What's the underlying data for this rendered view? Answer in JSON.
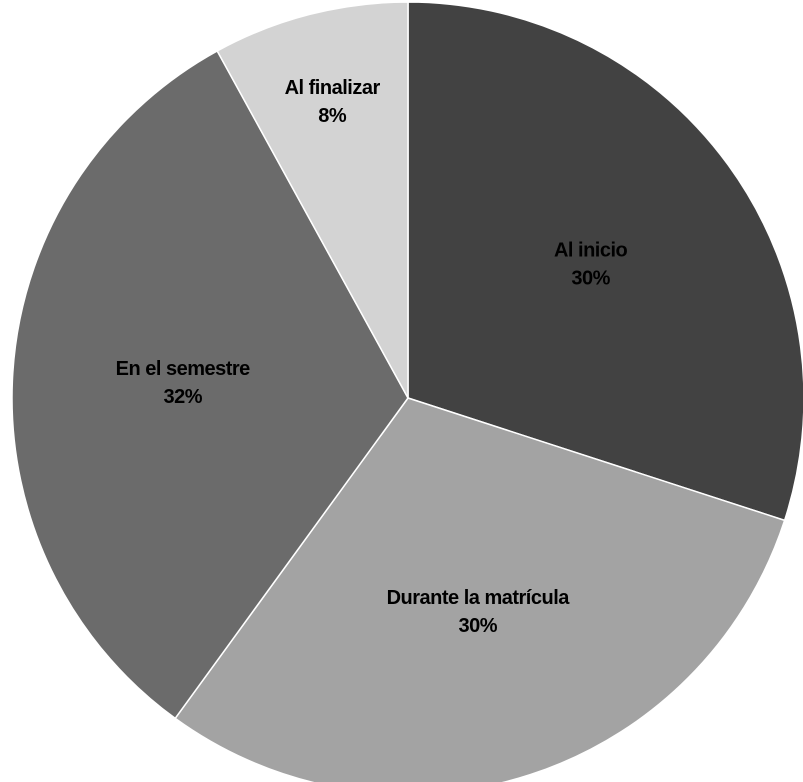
{
  "chart_data": {
    "type": "pie",
    "categories": [
      "Al inicio",
      "Durante la matrícula",
      "En el semestre",
      "Al finalizar"
    ],
    "values": [
      30,
      30,
      32,
      8
    ],
    "value_labels": [
      "30%",
      "30%",
      "32%",
      "8%"
    ],
    "colors": [
      "#424242",
      "#a3a3a3",
      "#6b6b6b",
      "#d3d3d3"
    ]
  }
}
